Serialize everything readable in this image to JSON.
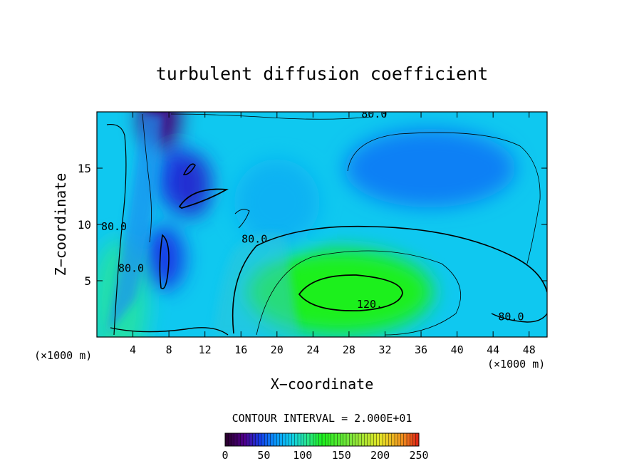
{
  "chart_data": {
    "type": "heatmap",
    "title": "turbulent diffusion coefficient",
    "xlabel": "X−coordinate",
    "ylabel": "Z−coordinate",
    "x_unit_left": "(×1000 m)",
    "x_unit_right": "(×1000 m)",
    "xlim": [
      0,
      50
    ],
    "ylim": [
      0,
      20
    ],
    "x_ticks": [
      4,
      8,
      12,
      16,
      20,
      24,
      28,
      32,
      36,
      40,
      44,
      48
    ],
    "y_ticks": [
      5,
      10,
      15
    ],
    "contour_interval_text": "CONTOUR INTERVAL = 2.000E+01",
    "colorbar": {
      "min": 0,
      "max": 250,
      "ticks": [
        0,
        50,
        100,
        150,
        200,
        250
      ]
    },
    "contour_labels": [
      {
        "text": "80.0",
        "x": 30.8,
        "y": 19.5
      },
      {
        "text": "80.0",
        "x": 1.9,
        "y": 9.5
      },
      {
        "text": "80.0",
        "x": 3.8,
        "y": 5.8
      },
      {
        "text": "80.0",
        "x": 17.5,
        "y": 8.4
      },
      {
        "text": "120.",
        "x": 30.3,
        "y": 2.6
      },
      {
        "text": "80.0",
        "x": 46.0,
        "y": 1.5
      }
    ],
    "regions": [
      {
        "x": 37,
        "y": 15,
        "value": 60
      },
      {
        "x": 9,
        "y": 14,
        "value": 45
      },
      {
        "x": 7,
        "y": 19.5,
        "value": 20
      },
      {
        "x": 10.5,
        "y": 13.5,
        "value": 40
      },
      {
        "x": 7.5,
        "y": 7,
        "value": 45
      },
      {
        "x": 27,
        "y": 4,
        "value": 125
      },
      {
        "x": 2.5,
        "y": 3,
        "value": 100
      },
      {
        "x": 20,
        "y": 12,
        "value": 75
      }
    ],
    "colors": {
      "background_field": "#0fc8f0",
      "plot_frame": "#000000"
    }
  }
}
